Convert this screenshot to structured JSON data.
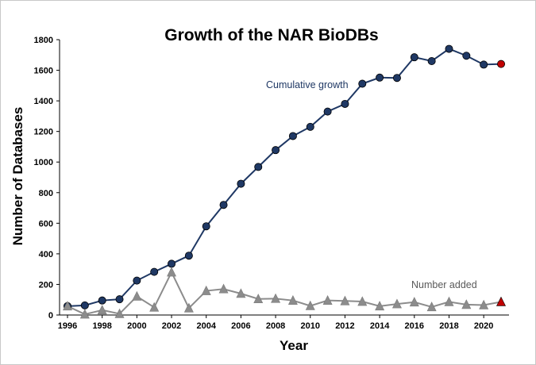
{
  "chart_data": {
    "type": "line",
    "title": "Growth of the NAR BioDBs",
    "xlabel": "Year",
    "ylabel": "Number of Databases",
    "xlim": [
      1996,
      2021
    ],
    "ylim": [
      0,
      1800
    ],
    "x_ticks": [
      1996,
      1998,
      2000,
      2002,
      2004,
      2006,
      2008,
      2010,
      2012,
      2014,
      2016,
      2018,
      2020
    ],
    "y_ticks": [
      0,
      200,
      400,
      600,
      800,
      1000,
      1200,
      1400,
      1600,
      1800
    ],
    "grid": false,
    "legend": "none",
    "x": [
      1996,
      1997,
      1998,
      1999,
      2000,
      2001,
      2002,
      2003,
      2004,
      2005,
      2006,
      2007,
      2008,
      2009,
      2010,
      2011,
      2012,
      2013,
      2014,
      2015,
      2016,
      2017,
      2018,
      2019,
      2020,
      2021
    ],
    "series": [
      {
        "name": "Cumulative growth",
        "color": "#1f3864",
        "marker": "circle",
        "values": [
          58,
          63,
          95,
          103,
          225,
          282,
          335,
          388,
          580,
          720,
          858,
          968,
          1078,
          1170,
          1230,
          1330,
          1380,
          1512,
          1552,
          1550,
          1685,
          1660,
          1740,
          1695,
          1637,
          1641
        ],
        "last_point_color": "#c00000"
      },
      {
        "name": "Number added",
        "color": "#8c8c8c",
        "marker": "triangle",
        "values": [
          58,
          5,
          32,
          8,
          122,
          50,
          280,
          45,
          158,
          170,
          140,
          105,
          107,
          95,
          60,
          95,
          92,
          88,
          58,
          72,
          84,
          53,
          86,
          68,
          65,
          86
        ],
        "last_point_color": "#c00000"
      }
    ]
  }
}
